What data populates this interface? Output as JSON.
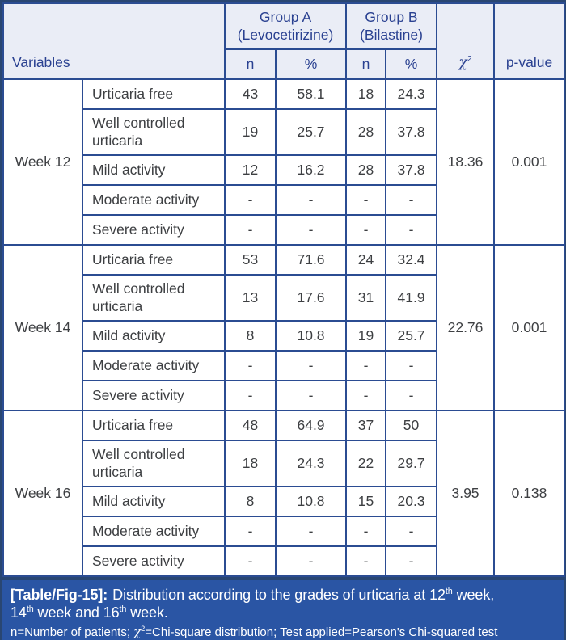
{
  "table": {
    "header": {
      "variables_label": "Variables",
      "group_a": {
        "name": "Group A",
        "detail": "(Levocetirizine)"
      },
      "group_b": {
        "name": "Group B",
        "detail": "(Bilastine)"
      },
      "subcolumns": [
        "n",
        "%",
        "n",
        "%"
      ],
      "chi_square_segments": [
        {
          "t": "χ",
          "i": true
        },
        {
          "t": "2",
          "sup": true
        }
      ],
      "p_value_label": "p-value"
    },
    "sections": [
      {
        "week": "Week 12",
        "chi_square": "18.36",
        "p_value": "0.001",
        "rows": [
          {
            "label": "Urticaria free",
            "values": [
              "43",
              "58.1",
              "18",
              "24.3"
            ]
          },
          {
            "label": "Well controlled urticaria",
            "values": [
              "19",
              "25.7",
              "28",
              "37.8"
            ]
          },
          {
            "label": "Mild activity",
            "values": [
              "12",
              "16.2",
              "28",
              "37.8"
            ]
          },
          {
            "label": "Moderate activity",
            "values": [
              "-",
              "-",
              "-",
              "-"
            ]
          },
          {
            "label": "Severe activity",
            "values": [
              "-",
              "-",
              "-",
              "-"
            ]
          }
        ]
      },
      {
        "week": "Week 14",
        "chi_square": "22.76",
        "p_value": "0.001",
        "rows": [
          {
            "label": "Urticaria free",
            "values": [
              "53",
              "71.6",
              "24",
              "32.4"
            ]
          },
          {
            "label": "Well controlled urticaria",
            "values": [
              "13",
              "17.6",
              "31",
              "41.9"
            ]
          },
          {
            "label": "Mild activity",
            "values": [
              "8",
              "10.8",
              "19",
              "25.7"
            ]
          },
          {
            "label": "Moderate activity",
            "values": [
              "-",
              "-",
              "-",
              "-"
            ]
          },
          {
            "label": "Severe activity",
            "values": [
              "-",
              "-",
              "-",
              "-"
            ]
          }
        ]
      },
      {
        "week": "Week 16",
        "chi_square": "3.95",
        "p_value": "0.138",
        "rows": [
          {
            "label": "Urticaria free",
            "values": [
              "48",
              "64.9",
              "37",
              "50"
            ]
          },
          {
            "label": "Well controlled urticaria",
            "values": [
              "18",
              "24.3",
              "22",
              "29.7"
            ]
          },
          {
            "label": "Mild activity",
            "values": [
              "8",
              "10.8",
              "15",
              "20.3"
            ]
          },
          {
            "label": "Moderate activity",
            "values": [
              "-",
              "-",
              "-",
              "-"
            ]
          },
          {
            "label": "Severe activity",
            "values": [
              "-",
              "-",
              "-",
              "-"
            ]
          }
        ]
      }
    ]
  },
  "footer": {
    "caption_line1_segments": [
      {
        "t": "[Table/Fig-15]:",
        "b": true
      },
      {
        "t": "Distribution according to the grades of urticaria at 12"
      },
      {
        "t": "th",
        "sup": true
      },
      {
        "t": " week,"
      }
    ],
    "caption_line2_segments": [
      {
        "t": "14"
      },
      {
        "t": "th",
        "sup": true
      },
      {
        "t": " week and 16"
      },
      {
        "t": "th",
        "sup": true
      },
      {
        "t": " week."
      }
    ],
    "footnote_segments": [
      {
        "t": "n=Number of patients; "
      },
      {
        "t": "χ",
        "i": true
      },
      {
        "t": "2",
        "sup": true
      },
      {
        "t": "=Chi-square distribution; Test applied=Pearson's Chi-squared test"
      }
    ]
  },
  "colors": {
    "border": "#2b4c92",
    "outer_border": "#294672",
    "header_background": "#eaedf6",
    "header_text": "#2a4191",
    "body_text": "#3d3f42",
    "footer_background": "#2a55a4",
    "footer_text": "#ffffff"
  }
}
